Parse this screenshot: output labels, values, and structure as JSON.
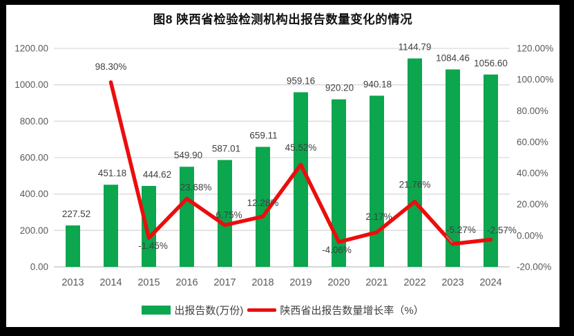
{
  "title": "图8  陕西省检验检测机构出报告数量变化的情况",
  "colors": {
    "bar": "#0BA64E",
    "line": "#EC0D0D",
    "gridline": "#D9D9D9",
    "baseline": "#BFBFBF",
    "axis_text": "#595959",
    "data_label_text": "#404040",
    "frame": "#000000",
    "leader_line": "#A6A6A6"
  },
  "legend": [
    {
      "label": "出报告数(万份)",
      "type": "bar"
    },
    {
      "label": "陕西省出报告数量增长率（%）",
      "type": "line"
    }
  ],
  "chart_data": {
    "type": "bar",
    "subtype": "combo-bar-line-dual-axis",
    "title": "图8  陕西省检验检测机构出报告数量变化的情况",
    "categories": [
      "2013",
      "2014",
      "2015",
      "2016",
      "2017",
      "2018",
      "2019",
      "2020",
      "2021",
      "2022",
      "2023",
      "2024"
    ],
    "series": [
      {
        "name": "出报告数(万份)",
        "type": "bar",
        "axis": "left",
        "values": [
          227.52,
          451.18,
          444.62,
          549.9,
          587.01,
          659.11,
          959.16,
          920.2,
          940.18,
          1144.79,
          1084.46,
          1056.6
        ],
        "labels": [
          "227.52",
          "451.18",
          "444.62",
          "549.90",
          "587.01",
          "659.11",
          "959.16",
          "920.20",
          "940.18",
          "1144.79",
          "1084.46",
          "1056.60"
        ]
      },
      {
        "name": "陕西省出报告数量增长率（%）",
        "type": "line",
        "axis": "right",
        "values": [
          null,
          98.3,
          -1.45,
          23.68,
          6.75,
          12.28,
          45.52,
          -4.06,
          2.17,
          21.76,
          -5.27,
          -2.57
        ],
        "labels": [
          null,
          "98.30%",
          "-1.45%",
          "23.68%",
          "6.75%",
          "12.28%",
          "45.52%",
          "-4.06%",
          "2.17%",
          "21.76%",
          "-5.27%",
          "-2.57%"
        ]
      }
    ],
    "left_axis": {
      "min": 0,
      "max": 1200,
      "step": 200,
      "tick_labels": [
        "0.00",
        "200.00",
        "400.00",
        "600.00",
        "800.00",
        "1000.00",
        "1200.00"
      ]
    },
    "right_axis": {
      "min": -20,
      "max": 120,
      "step": 20,
      "tick_labels": [
        "-20.00%",
        "0.00%",
        "20.00%",
        "40.00%",
        "60.00%",
        "80.00%",
        "100.00%",
        "120.00%"
      ]
    },
    "grid": true,
    "legend_position": "bottom",
    "xlabel": "",
    "ylabel_left": "",
    "ylabel_right": ""
  }
}
